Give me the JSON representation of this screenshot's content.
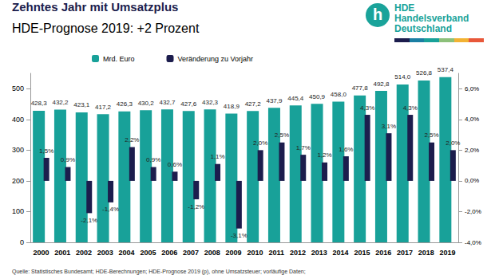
{
  "chart_data": {
    "type": "bar",
    "title": "Zehntes Jahr mit Umsatzplus",
    "subtitle": "HDE-Prognose 2019: +2 Prozent",
    "source": "Quelle: Statistisches Bundesamt; HDE-Berechnungen; HDE-Prognose 2019 (p), ohne Umsatzsteuer; vorläufige Daten;",
    "logo_text": [
      "h",
      "HDE",
      "Handelsverband",
      "Deutschland"
    ],
    "categories": [
      "2000",
      "2001",
      "2002",
      "2003",
      "2004",
      "2005",
      "2006",
      "2007",
      "2008",
      "2009",
      "2010",
      "2011",
      "2012",
      "2013",
      "2014",
      "2015",
      "2016",
      "2017",
      "2018",
      "2019"
    ],
    "series": [
      {
        "name": "Mrd. Euro",
        "color": "#18a199",
        "values": [
          428.3,
          432.2,
          423.1,
          417.2,
          426.3,
          430.2,
          432.7,
          427.6,
          432.3,
          418.9,
          427.2,
          437.9,
          445.4,
          450.9,
          458.0,
          477.8,
          492.8,
          514.0,
          526.8,
          537.4
        ],
        "value_labels": [
          "428,3",
          "432,2",
          "423,1",
          "417,2",
          "426,3",
          "430,2",
          "432,7",
          "427,6",
          "432,3",
          "418,9",
          "427,2",
          "437,9",
          "445,4",
          "450,9",
          "458,0",
          "477,8",
          "492,8",
          "514,0",
          "526,8",
          "537,4"
        ]
      },
      {
        "name": "Veränderung zu Vorjahr",
        "color": "#1c1d4d",
        "axis": "y2",
        "values": [
          1.5,
          0.9,
          -2.1,
          -1.4,
          2.2,
          0.9,
          0.6,
          -1.2,
          1.1,
          -3.1,
          2.0,
          2.5,
          1.7,
          1.2,
          1.6,
          4.3,
          3.1,
          4.3,
          2.5,
          2.0
        ],
        "value_labels": [
          "1,5%",
          "0,9%",
          "-2,1%",
          "-1,4%",
          "2,2%",
          "0,9%",
          "0,6%",
          "-1,2%",
          "1,1%",
          "-3,1%",
          "2,0%",
          "2,5%",
          "1,7%",
          "1,2%",
          "1,6%",
          "4,3%",
          "3,1%",
          "4,3%",
          "2,5%",
          "2,0%"
        ]
      }
    ],
    "ylim": [
      0,
      550
    ],
    "yticks": [
      0,
      100,
      200,
      300,
      400,
      500
    ],
    "y2lim": [
      -4,
      7
    ],
    "y2ticks": [
      {
        "value": -4,
        "label": "-4,0%"
      },
      {
        "value": -2,
        "label": "-2,0%"
      },
      {
        "value": 0,
        "label": "0,0%"
      },
      {
        "value": 2,
        "label": "2,0%"
      },
      {
        "value": 4,
        "label": "4,0%"
      },
      {
        "value": 6,
        "label": "6,0%"
      }
    ],
    "grid": false,
    "legend": "top",
    "data_labels": true
  }
}
